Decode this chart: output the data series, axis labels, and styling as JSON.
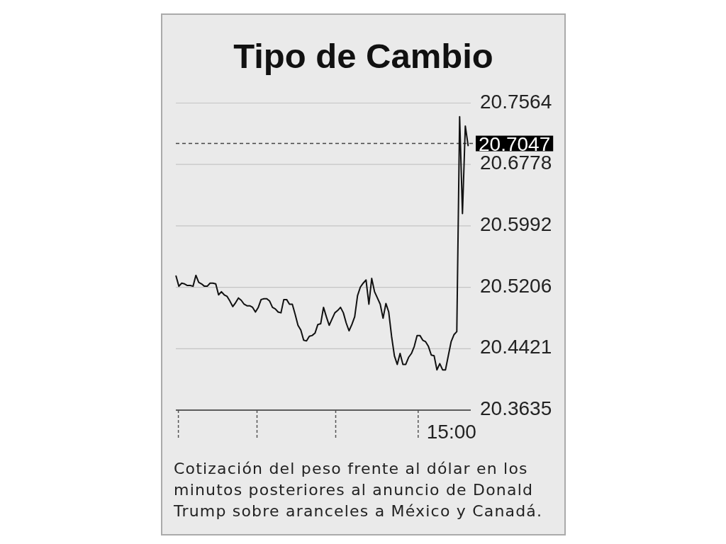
{
  "chart_data": {
    "type": "line",
    "title": "Tipo de Cambio",
    "annotations": [
      "15:00",
      "Cotización del peso frente al dólar en los minutos posteriores al anuncio de Donald Trump sobre aranceles a México y Canadá."
    ],
    "categories": [
      null,
      null,
      null,
      null,
      null,
      null,
      null,
      null,
      null,
      null,
      null,
      null,
      null,
      null,
      null,
      null,
      null,
      null,
      null,
      null,
      null,
      null,
      null,
      null,
      null,
      null,
      null,
      null,
      null,
      null,
      null,
      null,
      null,
      null,
      null,
      null,
      null,
      null,
      null,
      null,
      null,
      null,
      null,
      null,
      null,
      null,
      null,
      null,
      null,
      null,
      null,
      null,
      null,
      null,
      null,
      null,
      null,
      null,
      null,
      null,
      null,
      null,
      null,
      null,
      null,
      null,
      null,
      null,
      null,
      null,
      null,
      null,
      null,
      null,
      null,
      null,
      null,
      null,
      null,
      null,
      null,
      null,
      null,
      null,
      null,
      null,
      null,
      null,
      null,
      null,
      null,
      null,
      null,
      null,
      null,
      null,
      null,
      null,
      null,
      null,
      null,
      null,
      null,
      null
    ],
    "values": [
      20.535,
      20.522,
      20.526,
      20.525,
      20.523,
      20.523,
      20.522,
      20.536,
      20.527,
      20.525,
      20.522,
      20.522,
      20.526,
      20.526,
      20.525,
      20.511,
      20.515,
      20.511,
      20.509,
      20.503,
      20.496,
      20.501,
      20.507,
      20.504,
      20.499,
      20.497,
      20.497,
      20.495,
      20.489,
      20.495,
      20.505,
      20.506,
      20.506,
      20.503,
      20.495,
      20.493,
      20.489,
      20.488,
      20.505,
      20.505,
      20.499,
      20.499,
      20.486,
      20.472,
      20.466,
      20.453,
      20.452,
      20.458,
      20.459,
      20.462,
      20.473,
      20.474,
      20.495,
      20.483,
      20.472,
      20.48,
      20.488,
      20.491,
      20.495,
      20.488,
      20.475,
      20.465,
      20.473,
      20.483,
      20.51,
      20.521,
      20.526,
      20.53,
      20.499,
      20.532,
      20.515,
      20.507,
      20.499,
      20.481,
      20.5,
      20.489,
      20.458,
      20.433,
      20.422,
      20.436,
      20.422,
      20.422,
      20.431,
      20.436,
      20.445,
      20.459,
      20.459,
      20.453,
      20.451,
      20.445,
      20.434,
      20.433,
      20.415,
      20.423,
      20.415,
      20.415,
      20.433,
      20.451,
      20.46,
      20.464,
      20.739,
      20.615,
      20.727,
      20.702
    ],
    "color": "#111111",
    "ylim": [
      20.3635,
      20.7564
    ],
    "yticks": [
      20.3635,
      20.4421,
      20.5206,
      20.5992,
      20.6778,
      20.7564
    ],
    "grid": "y",
    "ref_lines": [
      {
        "axis": "y",
        "value": 20.7047,
        "label": "20.7047",
        "color": "#444444",
        "line_style": "dashed"
      }
    ]
  }
}
